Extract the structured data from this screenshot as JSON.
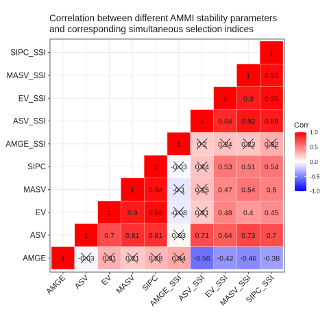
{
  "chart_data": {
    "type": "heatmap",
    "title_lines": [
      "Correlation between different AMMI stability parameters",
      "and corresponding simultaneous selection indices"
    ],
    "variables": [
      "AMGE",
      "ASV",
      "EV",
      "MASV",
      "SIPC",
      "AMGE_SSI",
      "ASV_SSI",
      "EV_SSI",
      "MASV_SSI",
      "SIPC_SSI"
    ],
    "legend": {
      "title": "Corr",
      "ticks": [
        1.0,
        0.5,
        0.0,
        -0.5,
        -1.0
      ],
      "tick_labels": [
        "1.0",
        "0.5",
        "0.0",
        "-0.5",
        "-1.0"
      ],
      "placement": "right"
    },
    "colors": {
      "high": "#ff0000",
      "mid": "#ffffff",
      "low": "#0000ff",
      "panel_bg": "#ffffff",
      "grid": "#ebebeb"
    },
    "grid": true,
    "cells": [
      {
        "x": "AMGE",
        "y": "AMGE",
        "value": 1,
        "label": "1",
        "crossed": false
      },
      {
        "x": "ASV",
        "y": "AMGE",
        "value": -0.03,
        "label": "-0.03",
        "crossed": true
      },
      {
        "x": "ASV",
        "y": "ASV",
        "value": 1,
        "label": "1",
        "crossed": false
      },
      {
        "x": "EV",
        "y": "AMGE",
        "value": 0.31,
        "label": "0.31",
        "crossed": true
      },
      {
        "x": "EV",
        "y": "ASV",
        "value": 0.7,
        "label": "0.7",
        "crossed": false
      },
      {
        "x": "EV",
        "y": "EV",
        "value": 1,
        "label": "1",
        "crossed": false
      },
      {
        "x": "MASV",
        "y": "AMGE",
        "value": 0.21,
        "label": "0.21",
        "crossed": true
      },
      {
        "x": "MASV",
        "y": "ASV",
        "value": 0.81,
        "label": "0.81",
        "crossed": false
      },
      {
        "x": "MASV",
        "y": "EV",
        "value": 0.9,
        "label": "0.9",
        "crossed": false
      },
      {
        "x": "MASV",
        "y": "MASV",
        "value": 1,
        "label": "1",
        "crossed": false
      },
      {
        "x": "SIPC",
        "y": "AMGE",
        "value": 0.28,
        "label": "0.28",
        "crossed": true
      },
      {
        "x": "SIPC",
        "y": "ASV",
        "value": 0.81,
        "label": "0.81",
        "crossed": false
      },
      {
        "x": "SIPC",
        "y": "EV",
        "value": 0.96,
        "label": "0.96",
        "crossed": false
      },
      {
        "x": "SIPC",
        "y": "MASV",
        "value": 0.94,
        "label": "0.94",
        "crossed": false
      },
      {
        "x": "SIPC",
        "y": "SIPC",
        "value": 1,
        "label": "1",
        "crossed": false
      },
      {
        "x": "AMGE_SSI",
        "y": "AMGE",
        "value": 0.34,
        "label": "0.34",
        "crossed": true
      },
      {
        "x": "AMGE_SSI",
        "y": "ASV",
        "value": 0.03,
        "label": "0.03",
        "crossed": true
      },
      {
        "x": "AMGE_SSI",
        "y": "EV",
        "value": -0.08,
        "label": "-0.08",
        "crossed": true
      },
      {
        "x": "AMGE_SSI",
        "y": "MASV",
        "value": -0.1,
        "label": "-0.1",
        "crossed": true
      },
      {
        "x": "AMGE_SSI",
        "y": "SIPC",
        "value": -0.03,
        "label": "-0.03",
        "crossed": true
      },
      {
        "x": "AMGE_SSI",
        "y": "AMGE_SSI",
        "value": 1,
        "label": "1",
        "crossed": false
      },
      {
        "x": "ASV_SSI",
        "y": "AMGE",
        "value": -0.56,
        "label": "-0.56",
        "crossed": false
      },
      {
        "x": "ASV_SSI",
        "y": "ASV",
        "value": 0.71,
        "label": "0.71",
        "crossed": false
      },
      {
        "x": "ASV_SSI",
        "y": "EV",
        "value": 0.21,
        "label": "0.21",
        "crossed": true
      },
      {
        "x": "ASV_SSI",
        "y": "MASV",
        "value": 0.25,
        "label": "0.25",
        "crossed": true
      },
      {
        "x": "ASV_SSI",
        "y": "SIPC",
        "value": 0.24,
        "label": "0.24",
        "crossed": true
      },
      {
        "x": "ASV_SSI",
        "y": "AMGE_SSI",
        "value": 0.2,
        "label": "0.2",
        "crossed": true
      },
      {
        "x": "ASV_SSI",
        "y": "ASV_SSI",
        "value": 1,
        "label": "1",
        "crossed": false
      },
      {
        "x": "EV_SSI",
        "y": "AMGE",
        "value": -0.42,
        "label": "-0.42",
        "crossed": false
      },
      {
        "x": "EV_SSI",
        "y": "ASV",
        "value": 0.64,
        "label": "0.64",
        "crossed": false
      },
      {
        "x": "EV_SSI",
        "y": "EV",
        "value": 0.48,
        "label": "0.48",
        "crossed": false
      },
      {
        "x": "EV_SSI",
        "y": "MASV",
        "value": 0.47,
        "label": "0.47",
        "crossed": false
      },
      {
        "x": "EV_SSI",
        "y": "SIPC",
        "value": 0.53,
        "label": "0.53",
        "crossed": false
      },
      {
        "x": "EV_SSI",
        "y": "AMGE_SSI",
        "value": 0.24,
        "label": "0.24",
        "crossed": true
      },
      {
        "x": "EV_SSI",
        "y": "ASV_SSI",
        "value": 0.84,
        "label": "0.84",
        "crossed": false
      },
      {
        "x": "EV_SSI",
        "y": "EV_SSI",
        "value": 1,
        "label": "1",
        "crossed": false
      },
      {
        "x": "MASV_SSI",
        "y": "AMGE",
        "value": -0.46,
        "label": "-0.46",
        "crossed": false
      },
      {
        "x": "MASV_SSI",
        "y": "ASV",
        "value": 0.73,
        "label": "0.73",
        "crossed": false
      },
      {
        "x": "MASV_SSI",
        "y": "EV",
        "value": 0.4,
        "label": "0.4",
        "crossed": false
      },
      {
        "x": "MASV_SSI",
        "y": "MASV",
        "value": 0.54,
        "label": "0.54",
        "crossed": false
      },
      {
        "x": "MASV_SSI",
        "y": "SIPC",
        "value": 0.51,
        "label": "0.51",
        "crossed": false
      },
      {
        "x": "MASV_SSI",
        "y": "AMGE_SSI",
        "value": 0.23,
        "label": "0.23",
        "crossed": true
      },
      {
        "x": "MASV_SSI",
        "y": "ASV_SSI",
        "value": 0.92,
        "label": "0.92",
        "crossed": false
      },
      {
        "x": "MASV_SSI",
        "y": "EV_SSI",
        "value": 0.9,
        "label": "0.9",
        "crossed": false
      },
      {
        "x": "MASV_SSI",
        "y": "MASV_SSI",
        "value": 1,
        "label": "1",
        "crossed": false
      },
      {
        "x": "SIPC_SSI",
        "y": "AMGE",
        "value": -0.38,
        "label": "-0.38",
        "crossed": false
      },
      {
        "x": "SIPC_SSI",
        "y": "ASV",
        "value": 0.7,
        "label": "0.7",
        "crossed": false
      },
      {
        "x": "SIPC_SSI",
        "y": "EV",
        "value": 0.45,
        "label": "0.45",
        "crossed": false
      },
      {
        "x": "SIPC_SSI",
        "y": "MASV",
        "value": 0.5,
        "label": "0.5",
        "crossed": false
      },
      {
        "x": "SIPC_SSI",
        "y": "SIPC",
        "value": 0.54,
        "label": "0.54",
        "crossed": false
      },
      {
        "x": "SIPC_SSI",
        "y": "AMGE_SSI",
        "value": 0.32,
        "label": "0.32",
        "crossed": true
      },
      {
        "x": "SIPC_SSI",
        "y": "ASV_SSI",
        "value": 0.89,
        "label": "0.89",
        "crossed": false
      },
      {
        "x": "SIPC_SSI",
        "y": "EV_SSI",
        "value": 0.96,
        "label": "0.96",
        "crossed": false
      },
      {
        "x": "SIPC_SSI",
        "y": "MASV_SSI",
        "value": 0.95,
        "label": "0.95",
        "crossed": false
      },
      {
        "x": "SIPC_SSI",
        "y": "SIPC_SSI",
        "value": 1,
        "label": "1",
        "crossed": false
      }
    ]
  }
}
